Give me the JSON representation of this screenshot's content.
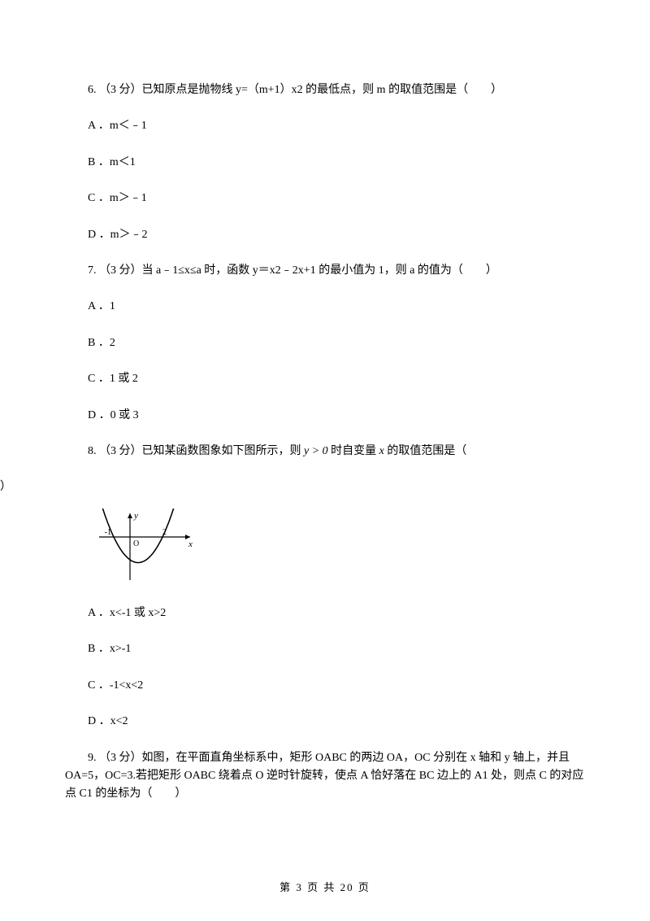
{
  "questions": [
    {
      "stem": "6. （3 分）已知原点是抛物线 y=（m+1）x2 的最低点，则 m 的取值范围是（　　）",
      "options": {
        "A": "A ．m＜﹣1",
        "B": "B ．m＜1",
        "C": "C ．m＞﹣1",
        "D": "D ．m＞﹣2"
      }
    },
    {
      "stem": "7. （3 分）当 a﹣1≤x≤a 时，函数 y＝x2﹣2x+1 的最小值为 1，则 a 的值为（　　）",
      "options": {
        "A": "A ．1",
        "B": "B ．2",
        "C": "C ．1 或 2",
        "D": "D ．0 或 3"
      }
    },
    {
      "stem_pre": "8. （3 分）已知某函数图象如下图所示，则 ",
      "cond": "y > 0",
      "stem_mid": " 时自变量 ",
      "var": "x",
      "stem_post": " 的取值范围是（",
      "close": "）",
      "options": {
        "A": "A ．x<-1 或 x>2",
        "B": "B ．x>-1",
        "C": "C ．-1<x<2",
        "D": "D ．x<2"
      }
    },
    {
      "stem": "9. （3 分）如图，在平面直角坐标系中，矩形 OABC 的两边 OA，OC 分别在 x 轴和 y 轴上，并且 OA=5，OC=3.若把矩形 OABC 绕着点 O 逆时针旋转，使点 A 恰好落在 BC 边上的 A1 处，则点 C 的对应点 C1 的坐标为（　　）"
    }
  ],
  "figure": {
    "width": 120,
    "height": 90,
    "axis_color": "#000000",
    "curve_color": "#000000",
    "bg": "#ffffff",
    "x_left_label": "-1",
    "x_right_label": "2",
    "y_label": "y",
    "x_label": "x",
    "origin_label": "O",
    "stroke_width": 1.2
  },
  "footer": {
    "text": "第 3 页 共 20 页"
  }
}
